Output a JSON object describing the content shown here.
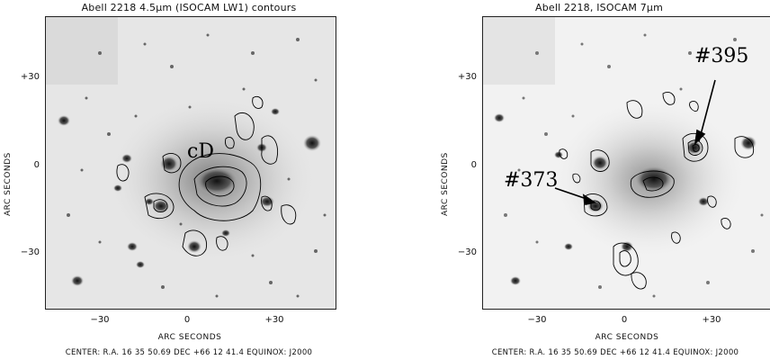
{
  "left_panel": {
    "title": "Abell 2218 4.5μm (ISOCAM LW1) contours",
    "y_ticks": [
      "+30",
      "0",
      "−30"
    ],
    "x_ticks": [
      "−30",
      "0",
      "+30"
    ],
    "ylabel": "ARC SECONDS",
    "xlabel": "ARC SECONDS",
    "center": "CENTER: R.A. 16 35 50.69 DEC +66 12 41.4  EQUINOX: J2000",
    "annotations": [
      "cD"
    ]
  },
  "right_panel": {
    "title": "Abell 2218, ISOCAM 7μm",
    "y_ticks": [
      "+30",
      "0",
      "−30"
    ],
    "x_ticks": [
      "−30",
      "0",
      "+30"
    ],
    "ylabel": "ARC SECONDS",
    "xlabel": "ARC SECONDS",
    "center": "CENTER: R.A. 16 35 50.69 DEC +66 12 41.4  EQUINOX: J2000",
    "annotations": [
      "#395",
      "#373"
    ]
  }
}
